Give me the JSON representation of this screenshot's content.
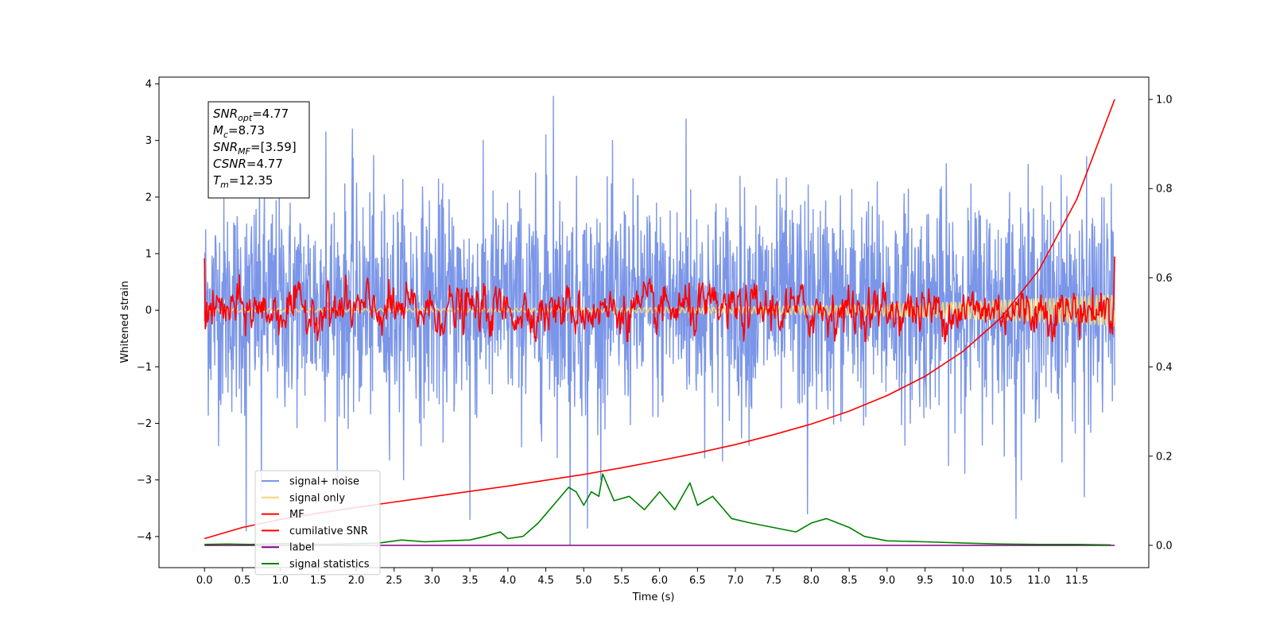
{
  "chart_data": {
    "type": "line",
    "title": "",
    "xlabel": "Time (s)",
    "ylabel": "Whitened strain",
    "y2label": "",
    "xlim": [
      -0.6,
      12.45
    ],
    "ylim": [
      -4.55,
      4.12
    ],
    "y2lim": [
      -0.05,
      1.05
    ],
    "xticks": [
      0.0,
      0.5,
      1.0,
      1.5,
      2.0,
      2.5,
      3.0,
      3.5,
      4.0,
      4.5,
      5.0,
      5.5,
      6.0,
      6.5,
      7.0,
      7.5,
      8.0,
      8.5,
      9.0,
      9.5,
      10.0,
      10.5,
      11.0,
      11.5
    ],
    "yticks": [
      4,
      3,
      2,
      1,
      0,
      -1,
      -2,
      -3,
      -4
    ],
    "y2ticks": [
      1.0,
      0.8,
      0.6,
      0.4,
      0.2,
      0.0
    ],
    "grid": false,
    "legend_position": "lower-left",
    "annotation_lines": [
      {
        "base": "SNR",
        "sub": "opt",
        "rest": "=4.77"
      },
      {
        "base": "M",
        "sub": "c",
        "rest": "=8.73"
      },
      {
        "base": "SNR",
        "sub": "MF",
        "rest": "=[3.59]"
      },
      {
        "base": "CSNR",
        "sub": "",
        "rest": "=4.77"
      },
      {
        "base": "T",
        "sub": "m",
        "rest": "=12.35"
      }
    ],
    "series": [
      {
        "name": "signal+ noise",
        "axis": "left",
        "color": "#7b96e8",
        "kind": "noise",
        "x_range": [
          0.0,
          12.0
        ],
        "spread_band": [
          -2.0,
          2.2
        ],
        "notable_peaks": [
          {
            "x": 0.55,
            "y": -3.9
          },
          {
            "x": 0.75,
            "y": -3.2
          },
          {
            "x": 1.6,
            "y": 3.15
          },
          {
            "x": 1.95,
            "y": 3.2
          },
          {
            "x": 3.5,
            "y": -3.7
          },
          {
            "x": 4.5,
            "y": 3.1
          },
          {
            "x": 4.6,
            "y": 3.78
          },
          {
            "x": 4.82,
            "y": -4.15
          },
          {
            "x": 5.05,
            "y": -3.85
          },
          {
            "x": 6.35,
            "y": 3.38
          },
          {
            "x": 7.95,
            "y": -3.6
          },
          {
            "x": 10.7,
            "y": -3.68
          },
          {
            "x": 11.6,
            "y": -3.3
          }
        ]
      },
      {
        "name": "signal only",
        "axis": "left",
        "color": "#f5d37a",
        "kind": "chirp",
        "x_range": [
          0.0,
          12.0
        ]
      },
      {
        "name": "MF",
        "axis": "left",
        "color": "#ff0000",
        "kind": "noise-small",
        "x_range": [
          0.0,
          12.0
        ],
        "start_value": 0.92,
        "end_value": 0.95,
        "spread_band": [
          -0.45,
          0.5
        ]
      },
      {
        "name": "cumilative SNR",
        "axis": "right",
        "color": "#ff0000",
        "kind": "curve",
        "x": [
          0.0,
          0.5,
          1.0,
          1.5,
          2.0,
          2.5,
          3.0,
          3.5,
          4.0,
          4.5,
          5.0,
          5.5,
          6.0,
          6.5,
          7.0,
          7.5,
          8.0,
          8.5,
          9.0,
          9.5,
          10.0,
          10.5,
          11.0,
          11.5,
          12.0
        ],
        "values": [
          0.015,
          0.04,
          0.058,
          0.072,
          0.085,
          0.097,
          0.109,
          0.121,
          0.133,
          0.146,
          0.159,
          0.174,
          0.19,
          0.207,
          0.226,
          0.248,
          0.272,
          0.301,
          0.336,
          0.379,
          0.435,
          0.51,
          0.617,
          0.776,
          1.0
        ]
      },
      {
        "name": "label",
        "axis": "right",
        "color": "#800080",
        "kind": "curve",
        "x": [
          0.0,
          12.0
        ],
        "values": [
          0.0,
          0.0
        ]
      },
      {
        "name": "signal statistics",
        "axis": "right",
        "color": "#008000",
        "kind": "curve",
        "x": [
          0.0,
          0.3,
          0.6,
          1.0,
          1.3,
          1.6,
          2.0,
          2.3,
          2.6,
          2.9,
          3.2,
          3.5,
          3.7,
          3.9,
          4.0,
          4.2,
          4.4,
          4.5,
          4.6,
          4.8,
          4.9,
          5.0,
          5.1,
          5.2,
          5.25,
          5.4,
          5.6,
          5.8,
          6.0,
          6.2,
          6.4,
          6.5,
          6.7,
          6.95,
          7.2,
          7.5,
          7.8,
          8.0,
          8.2,
          8.5,
          8.7,
          9.0,
          9.5,
          10.0,
          10.5,
          11.0,
          11.5,
          11.95
        ],
        "values": [
          0.002,
          0.003,
          0.002,
          0.004,
          0.003,
          0.002,
          0.004,
          0.005,
          0.012,
          0.008,
          0.01,
          0.012,
          0.02,
          0.03,
          0.015,
          0.02,
          0.05,
          0.07,
          0.09,
          0.13,
          0.12,
          0.09,
          0.12,
          0.11,
          0.16,
          0.1,
          0.11,
          0.08,
          0.12,
          0.08,
          0.14,
          0.09,
          0.11,
          0.06,
          0.05,
          0.04,
          0.03,
          0.05,
          0.06,
          0.04,
          0.02,
          0.01,
          0.008,
          0.005,
          0.003,
          0.002,
          0.002,
          0.001
        ]
      }
    ]
  }
}
